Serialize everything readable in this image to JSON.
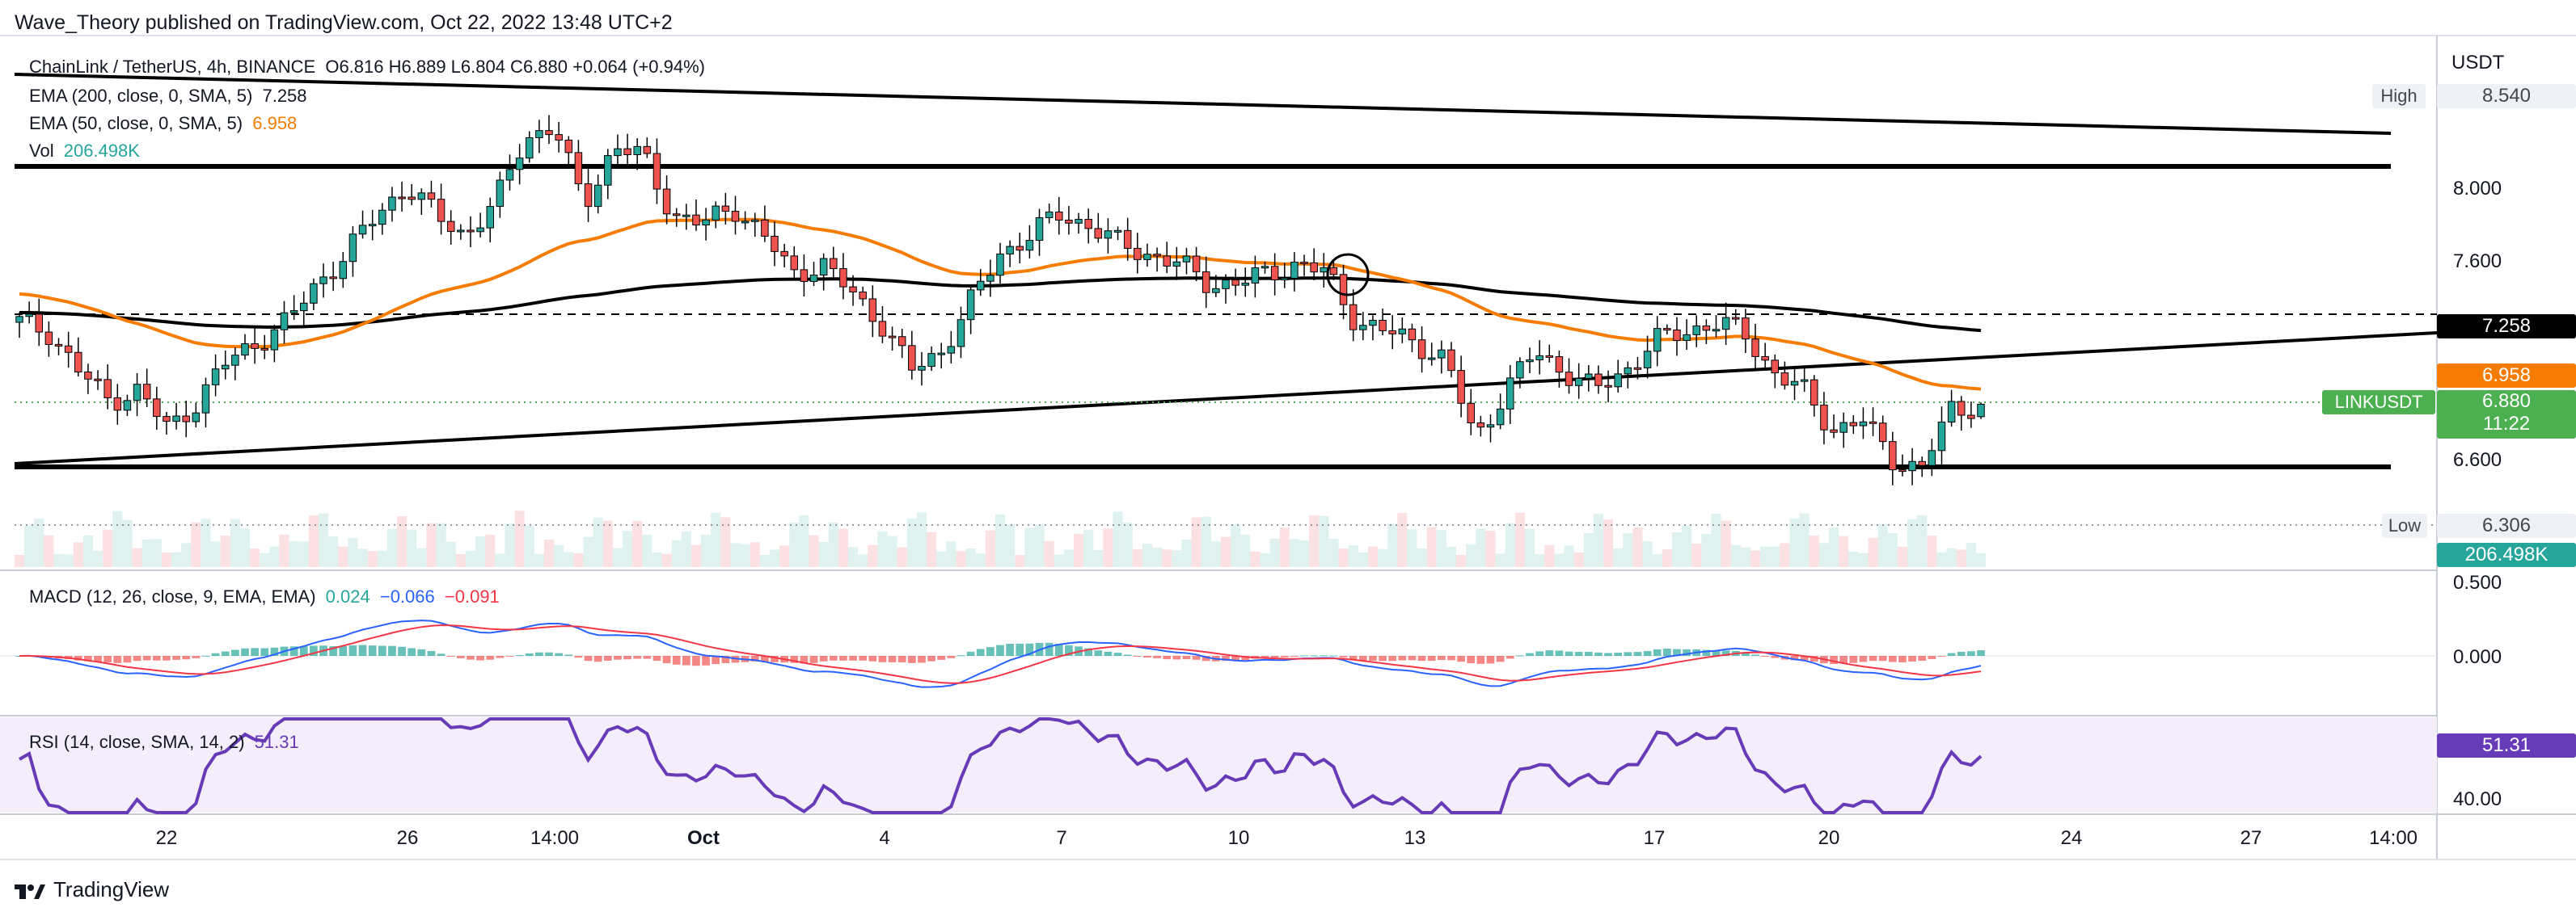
{
  "header": {
    "text": "Wave_Theory published on TradingView.com, Oct 22, 2022 13:48 UTC+2"
  },
  "footer": {
    "brand": "TradingView"
  },
  "legend": {
    "symbol": "ChainLink / TetherUS, 4h, BINANCE",
    "ohlc": "O6.816  H6.889  L6.804  C6.880  +0.064 (+0.94%)",
    "ema200_label": "EMA (200, close, 0, SMA, 5)",
    "ema200_value": "7.258",
    "ema50_label": "EMA (50, close, 0, SMA, 5)",
    "ema50_value": "6.958",
    "vol_label": "Vol",
    "vol_value": "206.498K",
    "macd_label": "MACD (12, 26, close, 9, EMA, EMA)",
    "macd_v1": "0.024",
    "macd_v2": "−0.066",
    "macd_v3": "−0.091",
    "rsi_label": "RSI (14, close, SMA, 14, 2)",
    "rsi_value": "51.31"
  },
  "price_axis": {
    "currency": "USDT",
    "ticks": [
      "8.000",
      "7.600",
      "6.600"
    ],
    "high_tag": "High",
    "high_value": "8.540",
    "low_tag": "Low",
    "low_value": "6.306",
    "ema200_tag": "7.258",
    "ema50_tag": "6.958",
    "last_symbol": "LINKUSDT",
    "last_value": "6.880",
    "countdown": "11:22",
    "volume_tag": "206.498K"
  },
  "macd_axis": {
    "ticks": [
      "0.500",
      "0.000"
    ]
  },
  "rsi_axis": {
    "value_tag": "51.31",
    "ticks": [
      "40.00"
    ]
  },
  "time_axis": {
    "ticks": [
      "22",
      "26",
      "14:00",
      "Oct",
      "4",
      "7",
      "10",
      "13",
      "17",
      "20",
      "24",
      "27",
      "14:00"
    ]
  },
  "colors": {
    "up": "#26a69a",
    "down": "#ef5350",
    "ema50": "#f57c00",
    "ema200": "#000000",
    "macd": "#2962ff",
    "signal": "#f23645",
    "rsi": "#673ab7",
    "last_price": "#4caf50",
    "vol_tag": "#26a69a"
  },
  "chart_data": {
    "type": "candlestick",
    "title": "ChainLink / TetherUS, 4h, BINANCE",
    "ylabel": "USDT",
    "ylim": [
      6.306,
      8.54
    ],
    "price_levels": {
      "high": 8.54,
      "low": 6.306,
      "ema200": 7.258,
      "ema50": 6.958,
      "last": 6.88
    },
    "ohlc_last": {
      "open": 6.816,
      "high": 6.889,
      "low": 6.804,
      "close": 6.88,
      "change": 0.064,
      "change_pct": 0.94
    },
    "timeline": [
      "22",
      "26",
      "14:00",
      "Oct",
      "4",
      "7",
      "10",
      "13",
      "17",
      "20"
    ],
    "close_path": [
      7.3,
      7.25,
      7.05,
      6.9,
      6.95,
      6.75,
      6.9,
      7.1,
      7.2,
      7.3,
      7.5,
      7.65,
      7.85,
      8.0,
      7.85,
      7.75,
      7.9,
      8.25,
      8.3,
      7.9,
      8.2,
      8.15,
      7.85,
      7.8,
      7.9,
      7.75,
      7.55,
      7.6,
      7.45,
      7.3,
      7.05,
      7.15,
      7.4,
      7.65,
      7.75,
      7.85,
      7.8,
      7.7,
      7.65,
      7.6,
      7.5,
      7.5,
      7.55,
      7.6,
      7.55,
      7.3,
      7.25,
      7.2,
      7.1,
      6.7,
      6.95,
      7.15,
      7.05,
      6.95,
      7.05,
      7.2,
      7.25,
      7.3,
      7.25,
      7.05,
      6.95,
      6.75,
      6.8,
      6.6,
      6.55,
      6.85,
      6.88
    ],
    "series": [
      {
        "name": "EMA (50, close, 0, SMA, 5)",
        "last": 6.958
      },
      {
        "name": "EMA (200, close, 0, SMA, 5)",
        "last": 7.258
      }
    ],
    "volume_last": "206.498K",
    "macd": {
      "macd": 0.024,
      "signal": -0.066,
      "histogram": -0.091,
      "ticks": [
        0.5,
        0.0
      ]
    },
    "rsi": {
      "value": 51.31,
      "ticks": [
        40.0
      ]
    }
  }
}
